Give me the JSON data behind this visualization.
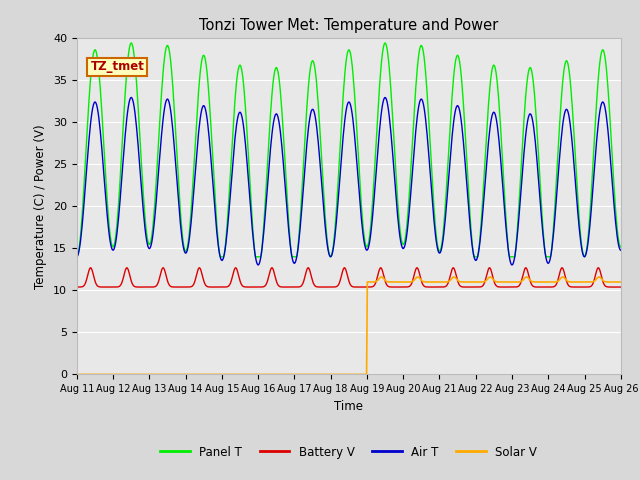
{
  "title": "Tonzi Tower Met: Temperature and Power",
  "ylabel": "Temperature (C) / Power (V)",
  "xlabel": "Time",
  "ylim": [
    0,
    40
  ],
  "yticks": [
    0,
    5,
    10,
    15,
    20,
    25,
    30,
    35,
    40
  ],
  "xtick_labels": [
    "Aug 11",
    "Aug 12",
    "Aug 13",
    "Aug 14",
    "Aug 15",
    "Aug 16",
    "Aug 17",
    "Aug 18",
    "Aug 19",
    "Aug 20",
    "Aug 21",
    "Aug 22",
    "Aug 23",
    "Aug 24",
    "Aug 25",
    "Aug 26"
  ],
  "label_box_text": "TZ_tmet",
  "label_box_facecolor": "#FFFFBB",
  "label_box_edgecolor": "#CC6600",
  "label_box_textcolor": "#AA0000",
  "background_color": "#E8E8E8",
  "grid_color": "#FFFFFF",
  "panel_T_color": "#00EE00",
  "battery_V_color": "#DD0000",
  "air_T_color": "#0000CC",
  "solar_V_color": "#FFAA00",
  "legend_labels": [
    "Panel T",
    "Battery V",
    "Air T",
    "Solar V"
  ]
}
